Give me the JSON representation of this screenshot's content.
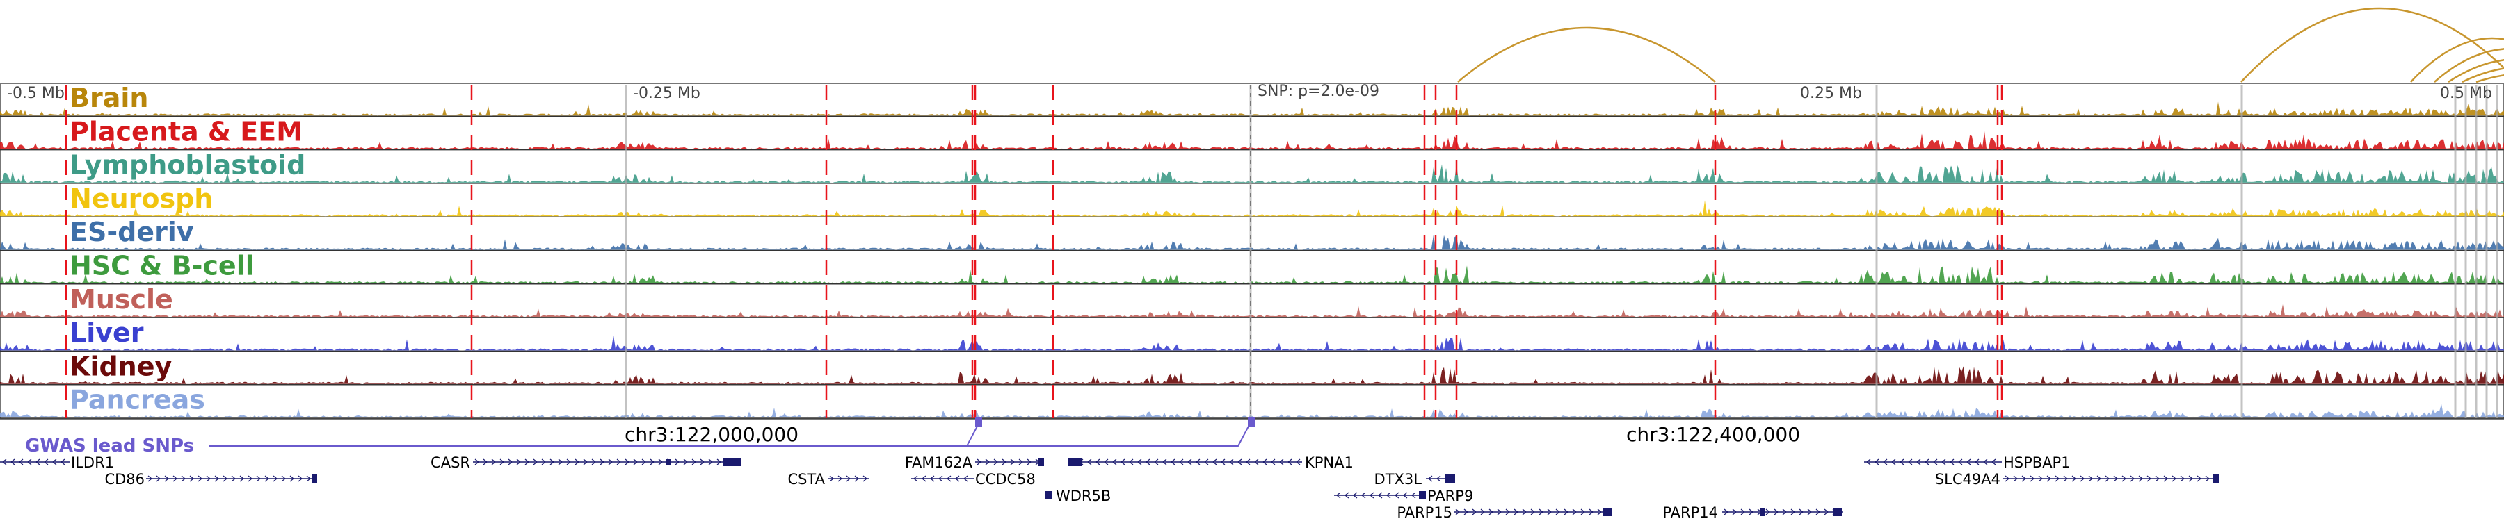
{
  "header": {
    "left_offset": "-0.5 Mb",
    "mid_left_offset": "-0.25 Mb",
    "snp_label": "SNP: p=2.0e-09",
    "mid_right_offset": "0.25 Mb",
    "right_offset": "0.5 Mb"
  },
  "tracks": [
    {
      "id": "brain",
      "label": "Brain",
      "color": "#B8860B"
    },
    {
      "id": "placenta",
      "label": "Placenta & EEM",
      "color": "#D7191C"
    },
    {
      "id": "lymphoblastoid",
      "label": "Lymphoblastoid",
      "color": "#3E9B87"
    },
    {
      "id": "neurosph",
      "label": "Neurosph",
      "color": "#F1C40F"
    },
    {
      "id": "es-deriv",
      "label": "ES-deriv",
      "color": "#3E6FA8"
    },
    {
      "id": "hsc",
      "label": "HSC & B-cell",
      "color": "#3E9B3E"
    },
    {
      "id": "muscle",
      "label": "Muscle",
      "color": "#C0605A"
    },
    {
      "id": "liver",
      "label": "Liver",
      "color": "#3A40D0"
    },
    {
      "id": "kidney",
      "label": "Kidney",
      "color": "#6B0A0A"
    },
    {
      "id": "pancreas",
      "label": "Pancreas",
      "color": "#8AA6DE"
    }
  ],
  "gwas": {
    "label": "GWAS lead SNPs",
    "color": "#6A5ACD"
  },
  "coords": {
    "left": "chr3:122,000,000",
    "right": "chr3:122,400,000"
  },
  "genes": [
    {
      "name": "ILDR1"
    },
    {
      "name": "CD86"
    },
    {
      "name": "CASR"
    },
    {
      "name": "CSTA"
    },
    {
      "name": "FAM162A"
    },
    {
      "name": "CCDC58"
    },
    {
      "name": "WDR5B"
    },
    {
      "name": "KPNA1"
    },
    {
      "name": "DTX3L"
    },
    {
      "name": "PARP9"
    },
    {
      "name": "PARP15"
    },
    {
      "name": "PARP14"
    },
    {
      "name": "HSPBAP1"
    },
    {
      "name": "SLC49A4"
    }
  ],
  "colors": {
    "arc": "#C8962E",
    "red_marker": "#E8141C",
    "gene": "#1A1A6E",
    "grid": "#9a9a9a"
  }
}
